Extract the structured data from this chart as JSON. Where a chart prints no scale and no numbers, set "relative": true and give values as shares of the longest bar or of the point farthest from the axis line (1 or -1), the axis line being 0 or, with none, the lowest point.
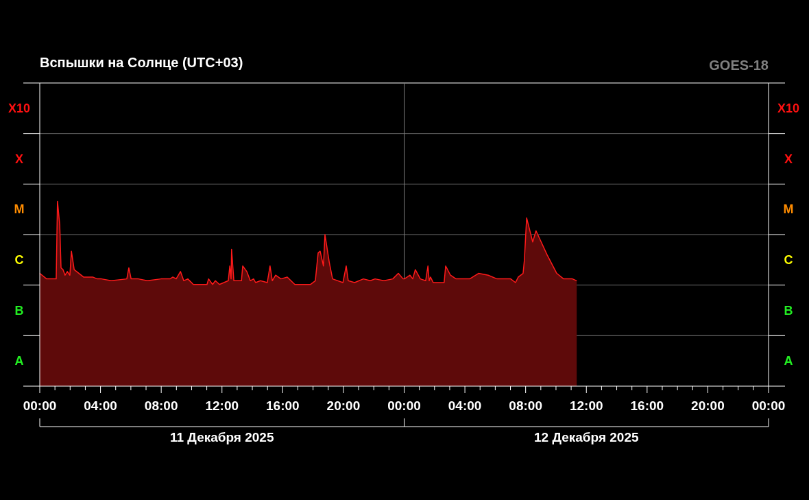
{
  "chart_data": {
    "type": "area",
    "title": "Вспышки на Солнце (UTC+03)",
    "subtitle": "GOES-18",
    "relative": true,
    "annotations": [
      "A",
      "B",
      "C",
      "M",
      "X",
      "X10",
      "11 Декабря 2025",
      "12 Декабря 2025"
    ],
    "x": [
      "2025-12-11T00:00",
      "2025-12-11T00:27",
      "2025-12-11T01:05",
      "2025-12-11T01:10",
      "2025-12-11T01:19",
      "2025-12-11T01:24",
      "2025-12-11T01:32",
      "2025-12-11T01:40",
      "2025-12-11T01:49",
      "2025-12-11T01:59",
      "2025-12-11T02:05",
      "2025-12-11T02:16",
      "2025-12-11T02:53",
      "2025-12-11T03:29",
      "2025-12-11T03:47",
      "2025-12-11T04:04",
      "2025-12-11T04:42",
      "2025-12-11T05:44",
      "2025-12-11T05:52",
      "2025-12-11T06:01",
      "2025-12-11T06:30",
      "2025-12-11T07:05",
      "2025-12-11T07:59",
      "2025-12-11T08:35",
      "2025-12-11T08:46",
      "2025-12-11T08:59",
      "2025-12-11T09:16",
      "2025-12-11T09:29",
      "2025-12-11T09:45",
      "2025-12-11T10:07",
      "2025-12-11T11:01",
      "2025-12-11T11:07",
      "2025-12-11T11:23",
      "2025-12-11T11:34",
      "2025-12-11T11:50",
      "2025-12-11T12:25",
      "2025-12-11T12:31",
      "2025-12-11T12:36",
      "2025-12-11T12:38",
      "2025-12-11T12:47",
      "2025-12-11T13:17",
      "2025-12-11T13:22",
      "2025-12-11T13:38",
      "2025-12-11T13:52",
      "2025-12-11T14:05",
      "2025-12-11T14:13",
      "2025-12-11T14:32",
      "2025-12-11T14:59",
      "2025-12-11T15:10",
      "2025-12-11T15:19",
      "2025-12-11T15:32",
      "2025-12-11T15:53",
      "2025-12-11T16:18",
      "2025-12-11T16:48",
      "2025-12-11T17:50",
      "2025-12-11T18:09",
      "2025-12-11T18:20",
      "2025-12-11T18:28",
      "2025-12-11T18:41",
      "2025-12-11T18:47",
      "2025-12-11T19:04",
      "2025-12-11T19:17",
      "2025-12-11T19:58",
      "2025-12-11T20:11",
      "2025-12-11T20:19",
      "2025-12-11T20:44",
      "2025-12-11T21:19",
      "2025-12-11T21:46",
      "2025-12-11T22:05",
      "2025-12-11T22:40",
      "2025-12-11T23:15",
      "2025-12-11T23:37",
      "2025-12-11T23:56",
      "2025-12-12T00:01",
      "2025-12-12T00:23",
      "2025-12-12T00:34",
      "2025-12-12T00:44",
      "2025-12-12T01:04",
      "2025-12-12T01:25",
      "2025-12-12T01:34",
      "2025-12-12T01:39",
      "2025-12-12T01:44",
      "2025-12-12T01:55",
      "2025-12-12T02:38",
      "2025-12-12T02:44",
      "2025-12-12T03:03",
      "2025-12-12T03:25",
      "2025-12-12T04:19",
      "2025-12-12T04:54",
      "2025-12-12T05:32",
      "2025-12-12T06:07",
      "2025-12-12T07:01",
      "2025-12-12T07:20",
      "2025-12-12T07:31",
      "2025-12-12T07:50",
      "2025-12-12T07:55",
      "2025-12-12T08:04",
      "2025-12-12T08:28",
      "2025-12-12T08:41",
      "2025-12-12T08:58",
      "2025-12-12T09:25",
      "2025-12-12T10:03",
      "2025-12-12T10:30",
      "2025-12-12T11:05",
      "2025-12-12T11:22"
    ],
    "series": [
      {
        "color": "#ff1a1a",
        "values": [
          0.61,
          0.58,
          0.58,
          1,
          0.87,
          0.64,
          0.63,
          0.6,
          0.62,
          0.6,
          0.73,
          0.63,
          0.59,
          0.59,
          0.58,
          0.58,
          0.57,
          0.58,
          0.64,
          0.58,
          0.58,
          0.57,
          0.58,
          0.58,
          0.59,
          0.58,
          0.62,
          0.57,
          0.58,
          0.55,
          0.55,
          0.58,
          0.55,
          0.57,
          0.55,
          0.57,
          0.65,
          0.58,
          0.74,
          0.57,
          0.57,
          0.65,
          0.62,
          0.57,
          0.58,
          0.56,
          0.57,
          0.56,
          0.65,
          0.57,
          0.6,
          0.58,
          0.59,
          0.55,
          0.55,
          0.57,
          0.72,
          0.73,
          0.65,
          0.82,
          0.67,
          0.58,
          0.56,
          0.65,
          0.57,
          0.56,
          0.58,
          0.57,
          0.58,
          0.57,
          0.58,
          0.61,
          0.58,
          0.58,
          0.6,
          0.58,
          0.63,
          0.58,
          0.57,
          0.65,
          0.57,
          0.59,
          0.56,
          0.56,
          0.65,
          0.6,
          0.58,
          0.58,
          0.61,
          0.6,
          0.58,
          0.58,
          0.56,
          0.59,
          0.61,
          0.68,
          0.91,
          0.78,
          0.84,
          0.79,
          0.71,
          0.61,
          0.58,
          0.58,
          0.57
        ]
      }
    ],
    "grid": "y",
    "xlim": [
      "2025-12-11T00:00",
      "2025-12-13T00:00"
    ],
    "xticks": [
      {
        "value": "2025-12-11T00:00",
        "label": "00:00"
      },
      {
        "value": "2025-12-11T01:00",
        "label": null
      },
      {
        "value": "2025-12-11T02:00",
        "label": null
      },
      {
        "value": "2025-12-11T03:00",
        "label": null
      },
      {
        "value": "2025-12-11T04:00",
        "label": "04:00"
      },
      {
        "value": "2025-12-11T05:00",
        "label": null
      },
      {
        "value": "2025-12-11T06:00",
        "label": null
      },
      {
        "value": "2025-12-11T07:00",
        "label": null
      },
      {
        "value": "2025-12-11T08:00",
        "label": "08:00"
      },
      {
        "value": "2025-12-11T09:00",
        "label": null
      },
      {
        "value": "2025-12-11T10:00",
        "label": null
      },
      {
        "value": "2025-12-11T11:00",
        "label": null
      },
      {
        "value": "2025-12-11T12:00",
        "label": "12:00"
      },
      {
        "value": "2025-12-11T13:00",
        "label": null
      },
      {
        "value": "2025-12-11T14:00",
        "label": null
      },
      {
        "value": "2025-12-11T15:00",
        "label": null
      },
      {
        "value": "2025-12-11T16:00",
        "label": "16:00"
      },
      {
        "value": "2025-12-11T17:00",
        "label": null
      },
      {
        "value": "2025-12-11T18:00",
        "label": null
      },
      {
        "value": "2025-12-11T19:00",
        "label": null
      },
      {
        "value": "2025-12-11T20:00",
        "label": "20:00"
      },
      {
        "value": "2025-12-11T21:00",
        "label": null
      },
      {
        "value": "2025-12-11T22:00",
        "label": null
      },
      {
        "value": "2025-12-11T23:00",
        "label": null
      },
      {
        "value": "2025-12-12T00:00",
        "label": "00:00"
      },
      {
        "value": "2025-12-12T01:00",
        "label": null
      },
      {
        "value": "2025-12-12T02:00",
        "label": null
      },
      {
        "value": "2025-12-12T03:00",
        "label": null
      },
      {
        "value": "2025-12-12T04:00",
        "label": "04:00"
      },
      {
        "value": "2025-12-12T05:00",
        "label": null
      },
      {
        "value": "2025-12-12T06:00",
        "label": null
      },
      {
        "value": "2025-12-12T07:00",
        "label": null
      },
      {
        "value": "2025-12-12T08:00",
        "label": "08:00"
      },
      {
        "value": "2025-12-12T09:00",
        "label": null
      },
      {
        "value": "2025-12-12T10:00",
        "label": null
      },
      {
        "value": "2025-12-12T11:00",
        "label": null
      },
      {
        "value": "2025-12-12T12:00",
        "label": "12:00"
      },
      {
        "value": "2025-12-12T13:00",
        "label": null
      },
      {
        "value": "2025-12-12T14:00",
        "label": null
      },
      {
        "value": "2025-12-12T15:00",
        "label": null
      },
      {
        "value": "2025-12-12T16:00",
        "label": "16:00"
      },
      {
        "value": "2025-12-12T17:00",
        "label": null
      },
      {
        "value": "2025-12-12T18:00",
        "label": null
      },
      {
        "value": "2025-12-12T19:00",
        "label": null
      },
      {
        "value": "2025-12-12T20:00",
        "label": "20:00"
      },
      {
        "value": "2025-12-12T21:00",
        "label": null
      },
      {
        "value": "2025-12-12T22:00",
        "label": null
      },
      {
        "value": "2025-12-12T23:00",
        "label": null
      },
      {
        "value": "2025-12-13T00:00",
        "label": "00:00"
      }
    ],
    "ref_lines": [
      {
        "axis": "x",
        "value": "2025-12-12T00:00",
        "label": null,
        "color": "#808080"
      }
    ]
  }
}
